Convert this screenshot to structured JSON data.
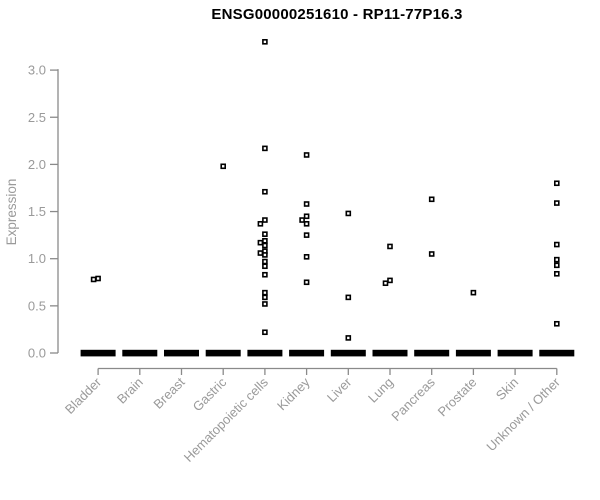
{
  "window": {
    "background": "#ffffff"
  },
  "colors": {
    "title_text": "#000000",
    "axis_line": "#8a8a8a",
    "axis_text": "#9a9a9a",
    "marker_stroke": "#000000",
    "marker_fill": "#ffffff",
    "zero_bar": "#000000"
  },
  "chart_data": {
    "type": "scatter",
    "title": "ENSG00000251610 - RP11-77P16.3",
    "xlabel": "",
    "ylabel": "Expression",
    "ylim": [
      0.0,
      3.3
    ],
    "ytick_values": [
      0,
      0.5,
      1,
      1.5,
      2,
      2.5,
      3
    ],
    "ytick_labels": [
      "0.0",
      "0.5",
      "1.0",
      "1.5",
      "2.0",
      "2.5",
      "3.0"
    ],
    "grid": false,
    "legend_position": "none",
    "marker_style": "open-square",
    "zero_bar_note": "thick black bar at 0.0 = many overlapping samples with zero expression",
    "categories": [
      {
        "label": "Bladder",
        "values": [
          0.79,
          0.78
        ],
        "zero_bar": true
      },
      {
        "label": "Brain",
        "values": [],
        "zero_bar": true
      },
      {
        "label": "Breast",
        "values": [],
        "zero_bar": true
      },
      {
        "label": "Gastric",
        "values": [
          1.98
        ],
        "zero_bar": true
      },
      {
        "label": "Hematopoietic cells",
        "values": [
          3.3,
          2.17,
          1.71,
          1.41,
          1.37,
          1.26,
          1.19,
          1.17,
          1.14,
          1.08,
          1.06,
          1.04,
          0.97,
          0.92,
          0.83,
          0.64,
          0.59,
          0.52,
          0.22
        ],
        "zero_bar": true
      },
      {
        "label": "Kidney",
        "values": [
          2.1,
          1.58,
          1.45,
          1.41,
          1.37,
          1.25,
          1.02,
          0.75
        ],
        "zero_bar": true
      },
      {
        "label": "Liver",
        "values": [
          1.48,
          0.59,
          0.16
        ],
        "zero_bar": true
      },
      {
        "label": "Lung",
        "values": [
          1.13,
          0.77,
          0.74
        ],
        "zero_bar": true
      },
      {
        "label": "Pancreas",
        "values": [
          1.63,
          1.05
        ],
        "zero_bar": true
      },
      {
        "label": "Prostate",
        "values": [
          0.64
        ],
        "zero_bar": true
      },
      {
        "label": "Skin",
        "values": [],
        "zero_bar": true
      },
      {
        "label": "Unknown / Other",
        "values": [
          1.8,
          1.59,
          1.15,
          0.99,
          0.93,
          0.84,
          0.31
        ],
        "zero_bar": true
      }
    ]
  }
}
